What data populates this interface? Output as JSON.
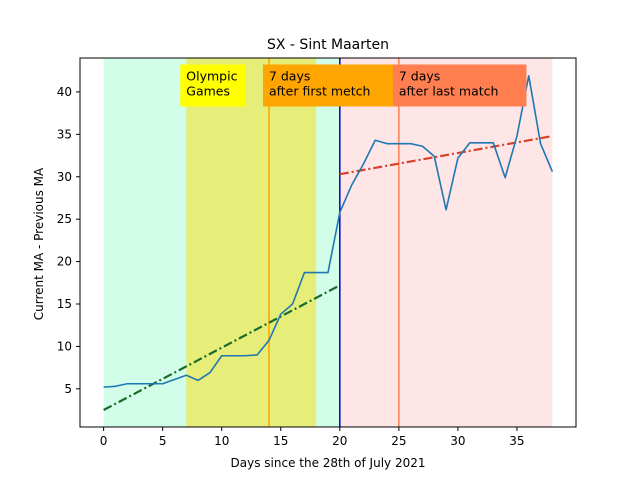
{
  "chart_data": {
    "type": "line",
    "title": "SX - Sint Maarten",
    "xlabel": "Days since the 28th of July 2021",
    "ylabel": "Current MA - Previous MA",
    "xlim": [
      -2,
      40
    ],
    "ylim": [
      0.5,
      44
    ],
    "xticks": [
      0,
      5,
      10,
      15,
      20,
      25,
      30,
      35
    ],
    "yticks": [
      5,
      10,
      15,
      20,
      25,
      30,
      35,
      40
    ],
    "grid": false,
    "series": [
      {
        "x": [
          0,
          1,
          2,
          3,
          4,
          5,
          6,
          7,
          8,
          9,
          10,
          11,
          12,
          13,
          14,
          15,
          16,
          17,
          18,
          19,
          20,
          21,
          22,
          23,
          24,
          25,
          26,
          27,
          28,
          29,
          30,
          31,
          32,
          33,
          34,
          35,
          36,
          37,
          38
        ],
        "y": [
          5.2,
          5.3,
          5.6,
          5.6,
          5.6,
          5.6,
          6.1,
          6.6,
          6.0,
          6.9,
          8.9,
          8.9,
          8.9,
          9.0,
          10.7,
          13.8,
          15.0,
          18.7,
          18.7,
          18.7,
          25.8,
          29.0,
          31.5,
          34.3,
          33.9,
          33.9,
          33.9,
          33.6,
          32.4,
          26.1,
          32.2,
          34.0,
          34.0,
          34.0,
          29.9,
          34.8,
          41.9,
          33.9,
          30.6
        ],
        "color": "#1f77b4"
      }
    ],
    "trend_lines": [
      {
        "x": [
          0,
          20
        ],
        "y": [
          2.5,
          17.2
        ],
        "color": "#1a6b2a",
        "style": "dash-dot"
      },
      {
        "x": [
          20,
          38
        ],
        "y": [
          30.3,
          34.8
        ],
        "color": "#d9402a",
        "style": "dash-dot"
      }
    ],
    "regions": [
      {
        "x": [
          0,
          20
        ],
        "color": "#d2fde9"
      },
      {
        "x": [
          7,
          18
        ],
        "color": "#e6ed78"
      },
      {
        "x": [
          20,
          38
        ],
        "color": "#fde6e5"
      }
    ],
    "vlines": [
      {
        "x": 14,
        "color": "#ffa500"
      },
      {
        "x": 20,
        "color": "#0000cc"
      },
      {
        "x": 25,
        "color": "#ff7f50"
      }
    ],
    "annotations": [
      {
        "lines": [
          "Olympic",
          "Games"
        ],
        "x": 7,
        "y": 43,
        "bg": "#ffff00"
      },
      {
        "lines": [
          "7 days",
          "after first metch"
        ],
        "x": 14,
        "y": 43,
        "bg": "#ffa500"
      },
      {
        "lines": [
          "7 days",
          "after last match"
        ],
        "x": 25,
        "y": 43,
        "bg": "#ff7f50"
      }
    ]
  }
}
